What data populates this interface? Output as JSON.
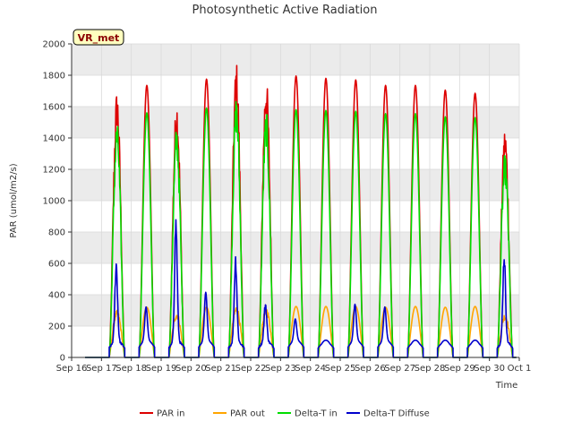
{
  "chart_data": {
    "type": "line",
    "title": "Photosynthetic Active Radiation",
    "xlabel": "Time",
    "ylabel": "PAR (umol/m2/s)",
    "ylim": [
      0,
      2000
    ],
    "xlim": [
      16,
      31
    ],
    "yticks": [
      0,
      200,
      400,
      600,
      800,
      1000,
      1200,
      1400,
      1600,
      1800,
      2000
    ],
    "xticks": [
      {
        "x": 16,
        "label": "Sep 16"
      },
      {
        "x": 17,
        "label": "Sep 17"
      },
      {
        "x": 18,
        "label": "Sep 18"
      },
      {
        "x": 19,
        "label": "Sep 19"
      },
      {
        "x": 20,
        "label": "Sep 20"
      },
      {
        "x": 21,
        "label": "Sep 21"
      },
      {
        "x": 22,
        "label": "Sep 22"
      },
      {
        "x": 23,
        "label": "Sep 23"
      },
      {
        "x": 24,
        "label": "Sep 24"
      },
      {
        "x": 25,
        "label": "Sep 25"
      },
      {
        "x": 26,
        "label": "Sep 26"
      },
      {
        "x": 27,
        "label": "Sep 27"
      },
      {
        "x": 28,
        "label": "Sep 28"
      },
      {
        "x": 29,
        "label": "Sep 29"
      },
      {
        "x": 30,
        "label": "Sep 30"
      },
      {
        "x": 31,
        "label": "Oct 1"
      }
    ],
    "grid": true,
    "legend_position": "bottom",
    "annotation": "VR_met",
    "series": [
      {
        "name": "PAR in",
        "color": "#dd0000",
        "daily_peak": [
          1710,
          1735,
          1650,
          1775,
          1890,
          1800,
          1795,
          1780,
          1770,
          1735,
          1735,
          1705,
          1685,
          1470
        ]
      },
      {
        "name": "PAR out",
        "color": "#ffa500",
        "daily_peak": [
          300,
          320,
          290,
          320,
          330,
          320,
          325,
          325,
          325,
          320,
          325,
          320,
          325,
          280
        ]
      },
      {
        "name": "Delta-T in",
        "color": "#00dd00",
        "daily_peak": [
          1510,
          1560,
          1480,
          1590,
          1670,
          1580,
          1580,
          1575,
          1570,
          1555,
          1555,
          1535,
          1530,
          1300
        ]
      },
      {
        "name": "Delta-T Diffuse",
        "color": "#0000cc",
        "daily_peak": [
          620,
          250,
          950,
          360,
          660,
          300,
          160,
          100,
          270,
          250,
          100,
          100,
          100,
          690
        ]
      }
    ],
    "day_start": 17,
    "day_count": 14
  },
  "colors": {
    "plot_background": "#ffffff",
    "band_background": "#ebebeb",
    "grid": "#d9d9d9",
    "badge_fill": "#ffffc0"
  }
}
